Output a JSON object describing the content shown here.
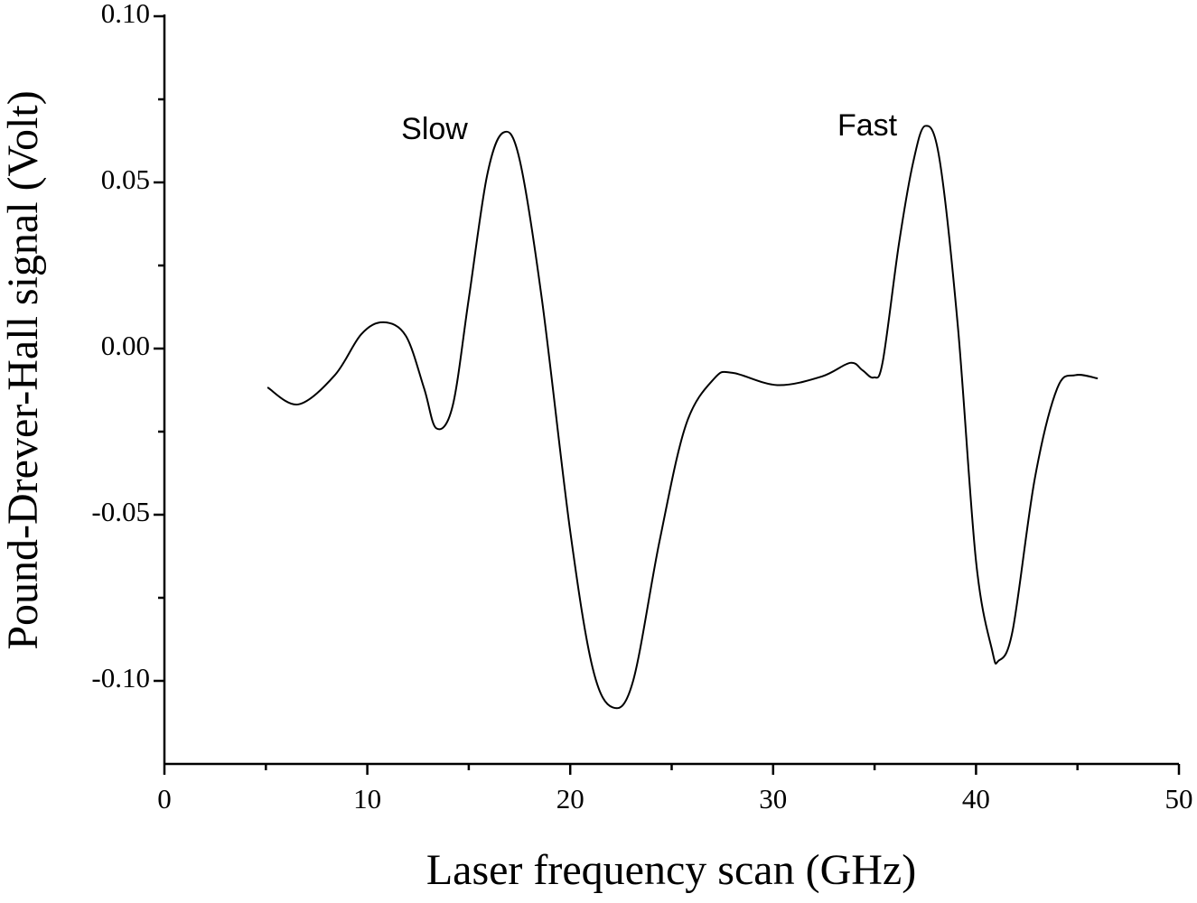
{
  "chart_data": {
    "type": "line",
    "x_label": "Laser frequency scan (GHz)",
    "y_label": "Pound-Drever-Hall signal (Volt)",
    "annotations": [
      "Slow",
      "Fast"
    ],
    "color": "#000000",
    "xlim": [
      0,
      50
    ],
    "ylim": [
      -0.125,
      0.1
    ],
    "xticks": [
      0,
      10,
      20,
      30,
      40,
      50
    ],
    "xminorticks": [
      5,
      15,
      25,
      35,
      45
    ],
    "yticks": [
      {
        "value": 0.1,
        "label": "0.10"
      },
      {
        "value": 0.05,
        "label": "0.05"
      },
      {
        "value": 0.0,
        "label": "0.00"
      },
      {
        "value": -0.05,
        "label": "-0.05"
      },
      {
        "value": -0.1,
        "label": "-0.10"
      }
    ],
    "yminorticks": [
      0.075,
      0.025,
      -0.025,
      -0.075
    ],
    "x": [
      5.08,
      6.6,
      8.4,
      9.7,
      10.8,
      11.9,
      12.8,
      13.4,
      14.2,
      15.0,
      15.9,
      16.7,
      17.5,
      18.6,
      20.0,
      21.1,
      22.1,
      23.1,
      24.4,
      25.7,
      27.1,
      28.0,
      30.2,
      32.4,
      33.8,
      34.4,
      34.95,
      35.4,
      36.2,
      36.9,
      37.5,
      38.2,
      39.1,
      40.0,
      40.8,
      41.1,
      41.8,
      42.9,
      44.0,
      44.9,
      46.0
    ],
    "values": [
      -0.0117,
      -0.0168,
      -0.008,
      0.0043,
      0.0079,
      0.0038,
      -0.012,
      -0.024,
      -0.0174,
      0.015,
      0.052,
      0.065,
      0.057,
      0.015,
      -0.055,
      -0.096,
      -0.108,
      -0.1,
      -0.058,
      -0.023,
      -0.009,
      -0.0073,
      -0.011,
      -0.0084,
      -0.0043,
      -0.0065,
      -0.0087,
      -0.004,
      0.0315,
      0.056,
      0.067,
      0.057,
      0.007,
      -0.064,
      -0.091,
      -0.094,
      -0.085,
      -0.039,
      -0.012,
      -0.008,
      -0.009
    ]
  }
}
